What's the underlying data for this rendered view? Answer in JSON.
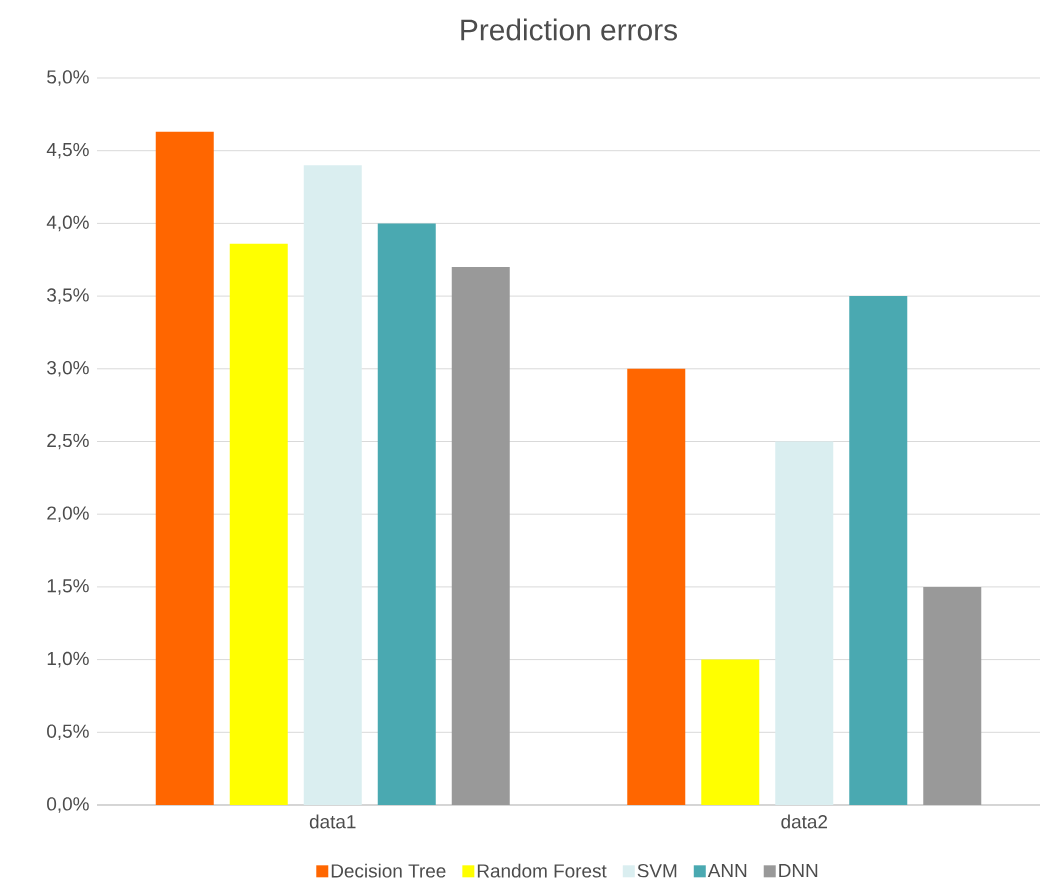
{
  "chart_data": {
    "type": "bar",
    "title": "Prediction errors",
    "categories": [
      "data1",
      "data2"
    ],
    "series": [
      {
        "name": "Decision Tree",
        "color": "#ff6600",
        "values": [
          4.63,
          3.0
        ]
      },
      {
        "name": "Random Forest",
        "color": "#ffff00",
        "values": [
          3.86,
          1.0
        ]
      },
      {
        "name": "SVM",
        "color": "#daeef0",
        "values": [
          4.4,
          2.5
        ]
      },
      {
        "name": "ANN",
        "color": "#4aa9b1",
        "values": [
          4.0,
          3.5
        ]
      },
      {
        "name": "DNN",
        "color": "#999999",
        "values": [
          3.7,
          1.5
        ]
      }
    ],
    "ylim": [
      0,
      5
    ],
    "yticks": [
      {
        "value": 0,
        "label": "0,0%"
      },
      {
        "value": 0.5,
        "label": "0,5%"
      },
      {
        "value": 1,
        "label": "1,0%"
      },
      {
        "value": 1.5,
        "label": "1,5%"
      },
      {
        "value": 2,
        "label": "2,0%"
      },
      {
        "value": 2.5,
        "label": "2,5%"
      },
      {
        "value": 3,
        "label": "3,0%"
      },
      {
        "value": 3.5,
        "label": "3,5%"
      },
      {
        "value": 4,
        "label": "4,0%"
      },
      {
        "value": 4.5,
        "label": "4,5%"
      },
      {
        "value": 5,
        "label": "5,0%"
      }
    ],
    "grid": "y",
    "legend": "bottom"
  }
}
